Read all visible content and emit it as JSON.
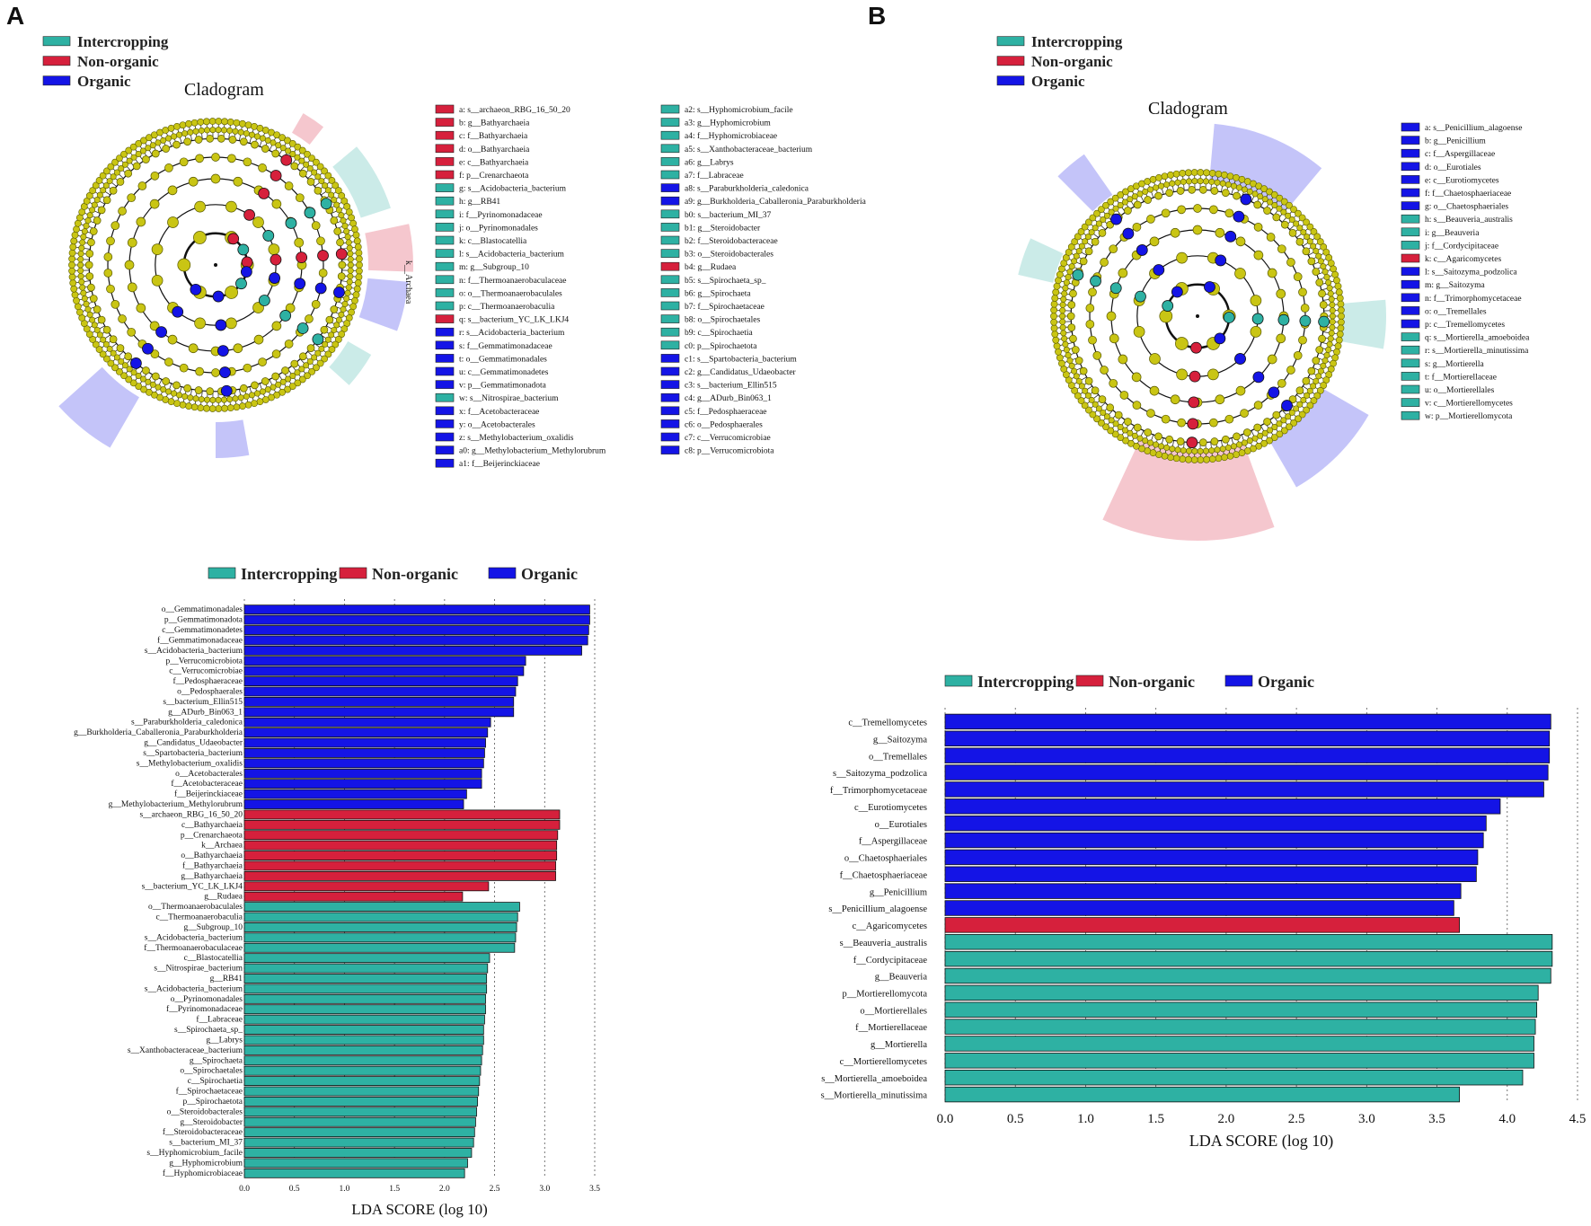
{
  "panels": [
    "A",
    "B"
  ],
  "colors": {
    "intercropping": "#2eb1a3",
    "non_organic": "#d6203c",
    "organic": "#1414e6",
    "node": "#c9c514",
    "node_stroke": "#5a5a00"
  },
  "cladogram_title": "Cladogram",
  "legend": {
    "intercropping": "Intercropping",
    "non_organic": "Non-organic",
    "organic": "Organic"
  },
  "chart_data": [
    {
      "panel": "A",
      "type": "cladogram",
      "title": "Cladogram",
      "series": [
        "Intercropping",
        "Non-organic",
        "Organic"
      ],
      "annotation": "k__Archaea",
      "key_col1": [
        {
          "g": "non_organic",
          "t": "a: s__archaeon_RBG_16_50_20"
        },
        {
          "g": "non_organic",
          "t": "b: g__Bathyarchaeia"
        },
        {
          "g": "non_organic",
          "t": "c: f__Bathyarchaeia"
        },
        {
          "g": "non_organic",
          "t": "d: o__Bathyarchaeia"
        },
        {
          "g": "non_organic",
          "t": "e: c__Bathyarchaeia"
        },
        {
          "g": "non_organic",
          "t": "f: p__Crenarchaeota"
        },
        {
          "g": "intercropping",
          "t": "g: s__Acidobacteria_bacterium"
        },
        {
          "g": "intercropping",
          "t": "h: g__RB41"
        },
        {
          "g": "intercropping",
          "t": "i: f__Pyrinomonadaceae"
        },
        {
          "g": "intercropping",
          "t": "j: o__Pyrinomonadales"
        },
        {
          "g": "intercropping",
          "t": "k: c__Blastocatellia"
        },
        {
          "g": "intercropping",
          "t": "l: s__Acidobacteria_bacterium"
        },
        {
          "g": "intercropping",
          "t": "m: g__Subgroup_10"
        },
        {
          "g": "intercropping",
          "t": "n: f__Thermoanaerobaculaceae"
        },
        {
          "g": "intercropping",
          "t": "o: o__Thermoanaerobaculales"
        },
        {
          "g": "intercropping",
          "t": "p: c__Thermoanaerobaculia"
        },
        {
          "g": "non_organic",
          "t": "q: s__bacterium_YC_LK_LKJ4"
        },
        {
          "g": "organic",
          "t": "r: s__Acidobacteria_bacterium"
        },
        {
          "g": "organic",
          "t": "s: f__Gemmatimonadaceae"
        },
        {
          "g": "organic",
          "t": "t: o__Gemmatimonadales"
        },
        {
          "g": "organic",
          "t": "u: c__Gemmatimonadetes"
        },
        {
          "g": "organic",
          "t": "v: p__Gemmatimonadota"
        },
        {
          "g": "intercropping",
          "t": "w: s__Nitrospirae_bacterium"
        },
        {
          "g": "organic",
          "t": "x: f__Acetobacteraceae"
        },
        {
          "g": "organic",
          "t": "y: o__Acetobacterales"
        },
        {
          "g": "organic",
          "t": "z: s__Methylobacterium_oxalidis"
        },
        {
          "g": "organic",
          "t": "a0: g__Methylobacterium_Methylorubrum"
        },
        {
          "g": "organic",
          "t": "a1: f__Beijerinckiaceae"
        }
      ],
      "key_col2": [
        {
          "g": "intercropping",
          "t": "a2: s__Hyphomicrobium_facile"
        },
        {
          "g": "intercropping",
          "t": "a3: g__Hyphomicrobium"
        },
        {
          "g": "intercropping",
          "t": "a4: f__Hyphomicrobiaceae"
        },
        {
          "g": "intercropping",
          "t": "a5: s__Xanthobacteraceae_bacterium"
        },
        {
          "g": "intercropping",
          "t": "a6: g__Labrys"
        },
        {
          "g": "intercropping",
          "t": "a7: f__Labraceae"
        },
        {
          "g": "organic",
          "t": "a8: s__Paraburkholderia_caledonica"
        },
        {
          "g": "organic",
          "t": "a9: g__Burkholderia_Caballeronia_Paraburkholderia"
        },
        {
          "g": "intercropping",
          "t": "b0: s__bacterium_MI_37"
        },
        {
          "g": "intercropping",
          "t": "b1: g__Steroidobacter"
        },
        {
          "g": "intercropping",
          "t": "b2: f__Steroidobacteraceae"
        },
        {
          "g": "intercropping",
          "t": "b3: o__Steroidobacterales"
        },
        {
          "g": "non_organic",
          "t": "b4: g__Rudaea"
        },
        {
          "g": "intercropping",
          "t": "b5: s__Spirochaeta_sp_"
        },
        {
          "g": "intercropping",
          "t": "b6: g__Spirochaeta"
        },
        {
          "g": "intercropping",
          "t": "b7: f__Spirochaetaceae"
        },
        {
          "g": "intercropping",
          "t": "b8: o__Spirochaetales"
        },
        {
          "g": "intercropping",
          "t": "b9: c__Spirochaetia"
        },
        {
          "g": "intercropping",
          "t": "c0: p__Spirochaetota"
        },
        {
          "g": "organic",
          "t": "c1: s__Spartobacteria_bacterium"
        },
        {
          "g": "organic",
          "t": "c2: g__Candidatus_Udaeobacter"
        },
        {
          "g": "organic",
          "t": "c3: s__bacterium_Ellin515"
        },
        {
          "g": "organic",
          "t": "c4: g__ADurb_Bin063_1"
        },
        {
          "g": "organic",
          "t": "c5: f__Pedosphaeraceae"
        },
        {
          "g": "organic",
          "t": "c6: o__Pedosphaerales"
        },
        {
          "g": "organic",
          "t": "c7: c__Verrucomicrobiae"
        },
        {
          "g": "organic",
          "t": "c8: p__Verrucomicrobiota"
        }
      ]
    },
    {
      "panel": "A",
      "type": "bar",
      "orientation": "horizontal",
      "xlabel": "LDA SCORE (log 10)",
      "xlim": [
        0,
        3.5
      ],
      "xticks": [
        "0.0",
        "0.5",
        "1.0",
        "1.5",
        "2.0",
        "2.5",
        "3.0",
        "3.5"
      ],
      "series": [
        "Intercropping",
        "Non-organic",
        "Organic"
      ],
      "bars": [
        {
          "label": "o__Gemmatimonadales",
          "value": 3.45,
          "g": "organic"
        },
        {
          "label": "p__Gemmatimonadota",
          "value": 3.45,
          "g": "organic"
        },
        {
          "label": "c__Gemmatimonadetes",
          "value": 3.44,
          "g": "organic"
        },
        {
          "label": "f__Gemmatimonadaceae",
          "value": 3.43,
          "g": "organic"
        },
        {
          "label": "s__Acidobacteria_bacterium",
          "value": 3.37,
          "g": "organic"
        },
        {
          "label": "p__Verrucomicrobiota",
          "value": 2.81,
          "g": "organic"
        },
        {
          "label": "c__Verrucomicrobiae",
          "value": 2.79,
          "g": "organic"
        },
        {
          "label": "f__Pedosphaeraceae",
          "value": 2.73,
          "g": "organic"
        },
        {
          "label": "o__Pedosphaerales",
          "value": 2.71,
          "g": "organic"
        },
        {
          "label": "s__bacterium_Ellin515",
          "value": 2.69,
          "g": "organic"
        },
        {
          "label": "g__ADurb_Bin063_1",
          "value": 2.69,
          "g": "organic"
        },
        {
          "label": "s__Paraburkholderia_caledonica",
          "value": 2.46,
          "g": "organic"
        },
        {
          "label": "g__Burkholderia_Caballeronia_Paraburkholderia",
          "value": 2.43,
          "g": "organic"
        },
        {
          "label": "g__Candidatus_Udaeobacter",
          "value": 2.41,
          "g": "organic"
        },
        {
          "label": "s__Spartobacteria_bacterium",
          "value": 2.4,
          "g": "organic"
        },
        {
          "label": "s__Methylobacterium_oxalidis",
          "value": 2.39,
          "g": "organic"
        },
        {
          "label": "o__Acetobacterales",
          "value": 2.37,
          "g": "organic"
        },
        {
          "label": "f__Acetobacteraceae",
          "value": 2.37,
          "g": "organic"
        },
        {
          "label": "f__Beijerinckiaceae",
          "value": 2.22,
          "g": "organic"
        },
        {
          "label": "g__Methylobacterium_Methylorubrum",
          "value": 2.19,
          "g": "organic"
        },
        {
          "label": "s__archaeon_RBG_16_50_20",
          "value": 3.15,
          "g": "non_organic"
        },
        {
          "label": "c__Bathyarchaeia",
          "value": 3.15,
          "g": "non_organic"
        },
        {
          "label": "p__Crenarchaeota",
          "value": 3.13,
          "g": "non_organic"
        },
        {
          "label": "k__Archaea",
          "value": 3.12,
          "g": "non_organic"
        },
        {
          "label": "o__Bathyarchaeia",
          "value": 3.12,
          "g": "non_organic"
        },
        {
          "label": "f__Bathyarchaeia",
          "value": 3.11,
          "g": "non_organic"
        },
        {
          "label": "g__Bathyarchaeia",
          "value": 3.11,
          "g": "non_organic"
        },
        {
          "label": "s__bacterium_YC_LK_LKJ4",
          "value": 2.44,
          "g": "non_organic"
        },
        {
          "label": "g__Rudaea",
          "value": 2.18,
          "g": "non_organic"
        },
        {
          "label": "o__Thermoanaerobaculales",
          "value": 2.75,
          "g": "intercropping"
        },
        {
          "label": "c__Thermoanaerobaculia",
          "value": 2.73,
          "g": "intercropping"
        },
        {
          "label": "g__Subgroup_10",
          "value": 2.72,
          "g": "intercropping"
        },
        {
          "label": "s__Acidobacteria_bacterium",
          "value": 2.71,
          "g": "intercropping"
        },
        {
          "label": "f__Thermoanaerobaculaceae",
          "value": 2.7,
          "g": "intercropping"
        },
        {
          "label": "c__Blastocatellia",
          "value": 2.45,
          "g": "intercropping"
        },
        {
          "label": "s__Nitrospirae_bacterium",
          "value": 2.43,
          "g": "intercropping"
        },
        {
          "label": "g__RB41",
          "value": 2.42,
          "g": "intercropping"
        },
        {
          "label": "s__Acidobacteria_bacterium",
          "value": 2.42,
          "g": "intercropping"
        },
        {
          "label": "o__Pyrinomonadales",
          "value": 2.41,
          "g": "intercropping"
        },
        {
          "label": "f__Pyrinomonadaceae",
          "value": 2.41,
          "g": "intercropping"
        },
        {
          "label": "f__Labraceae",
          "value": 2.4,
          "g": "intercropping"
        },
        {
          "label": "s__Spirochaeta_sp_",
          "value": 2.39,
          "g": "intercropping"
        },
        {
          "label": "g__Labrys",
          "value": 2.39,
          "g": "intercropping"
        },
        {
          "label": "s__Xanthobacteraceae_bacterium",
          "value": 2.38,
          "g": "intercropping"
        },
        {
          "label": "g__Spirochaeta",
          "value": 2.37,
          "g": "intercropping"
        },
        {
          "label": "o__Spirochaetales",
          "value": 2.36,
          "g": "intercropping"
        },
        {
          "label": "c__Spirochaetia",
          "value": 2.35,
          "g": "intercropping"
        },
        {
          "label": "f__Spirochaetaceae",
          "value": 2.34,
          "g": "intercropping"
        },
        {
          "label": "p__Spirochaetota",
          "value": 2.33,
          "g": "intercropping"
        },
        {
          "label": "o__Steroidobacterales",
          "value": 2.32,
          "g": "intercropping"
        },
        {
          "label": "g__Steroidobacter",
          "value": 2.31,
          "g": "intercropping"
        },
        {
          "label": "f__Steroidobacteraceae",
          "value": 2.3,
          "g": "intercropping"
        },
        {
          "label": "s__bacterium_MI_37",
          "value": 2.29,
          "g": "intercropping"
        },
        {
          "label": "s__Hyphomicrobium_facile",
          "value": 2.27,
          "g": "intercropping"
        },
        {
          "label": "g__Hyphomicrobium",
          "value": 2.23,
          "g": "intercropping"
        },
        {
          "label": "f__Hyphomicrobiaceae",
          "value": 2.2,
          "g": "intercropping"
        }
      ]
    },
    {
      "panel": "B",
      "type": "cladogram",
      "title": "Cladogram",
      "series": [
        "Intercropping",
        "Non-organic",
        "Organic"
      ],
      "key_col1": [
        {
          "g": "organic",
          "t": "a: s__Penicillium_alagoense"
        },
        {
          "g": "organic",
          "t": "b: g__Penicillium"
        },
        {
          "g": "organic",
          "t": "c: f__Aspergillaceae"
        },
        {
          "g": "organic",
          "t": "d: o__Eurotiales"
        },
        {
          "g": "organic",
          "t": "e: c__Eurotiomycetes"
        },
        {
          "g": "organic",
          "t": "f: f__Chaetosphaeriaceae"
        },
        {
          "g": "organic",
          "t": "g: o__Chaetosphaeriales"
        },
        {
          "g": "intercropping",
          "t": "h: s__Beauveria_australis"
        },
        {
          "g": "intercropping",
          "t": "i: g__Beauveria"
        },
        {
          "g": "intercropping",
          "t": "j: f__Cordycipitaceae"
        },
        {
          "g": "non_organic",
          "t": "k: c__Agaricomycetes"
        },
        {
          "g": "organic",
          "t": "l: s__Saitozyma_podzolica"
        },
        {
          "g": "organic",
          "t": "m: g__Saitozyma"
        },
        {
          "g": "organic",
          "t": "n: f__Trimorphomycetaceae"
        },
        {
          "g": "organic",
          "t": "o: o__Tremellales"
        },
        {
          "g": "organic",
          "t": "p: c__Tremellomycetes"
        },
        {
          "g": "intercropping",
          "t": "q: s__Mortierella_amoeboidea"
        },
        {
          "g": "intercropping",
          "t": "r: s__Mortierella_minutissima"
        },
        {
          "g": "intercropping",
          "t": "s: g__Mortierella"
        },
        {
          "g": "intercropping",
          "t": "t: f__Mortierellaceae"
        },
        {
          "g": "intercropping",
          "t": "u: o__Mortierellales"
        },
        {
          "g": "intercropping",
          "t": "v: c__Mortierellomycetes"
        },
        {
          "g": "intercropping",
          "t": "w: p__Mortierellomycota"
        }
      ]
    },
    {
      "panel": "B",
      "type": "bar",
      "orientation": "horizontal",
      "xlabel": "LDA SCORE (log 10)",
      "xlim": [
        0,
        4.5
      ],
      "xticks": [
        "0.0",
        "0.5",
        "1.0",
        "1.5",
        "2.0",
        "2.5",
        "3.0",
        "3.5",
        "4.0",
        "4.5"
      ],
      "series": [
        "Intercropping",
        "Non-organic",
        "Organic"
      ],
      "bars": [
        {
          "label": "c__Tremellomycetes",
          "value": 4.31,
          "g": "organic"
        },
        {
          "label": "g__Saitozyma",
          "value": 4.3,
          "g": "organic"
        },
        {
          "label": "o__Tremellales",
          "value": 4.3,
          "g": "organic"
        },
        {
          "label": "s__Saitozyma_podzolica",
          "value": 4.29,
          "g": "organic"
        },
        {
          "label": "f__Trimorphomycetaceae",
          "value": 4.26,
          "g": "organic"
        },
        {
          "label": "c__Eurotiomycetes",
          "value": 3.95,
          "g": "organic"
        },
        {
          "label": "o__Eurotiales",
          "value": 3.85,
          "g": "organic"
        },
        {
          "label": "f__Aspergillaceae",
          "value": 3.83,
          "g": "organic"
        },
        {
          "label": "o__Chaetosphaeriales",
          "value": 3.79,
          "g": "organic"
        },
        {
          "label": "f__Chaetosphaeriaceae",
          "value": 3.78,
          "g": "organic"
        },
        {
          "label": "g__Penicillium",
          "value": 3.67,
          "g": "organic"
        },
        {
          "label": "s__Penicillium_alagoense",
          "value": 3.62,
          "g": "organic"
        },
        {
          "label": "c__Agaricomycetes",
          "value": 3.66,
          "g": "non_organic"
        },
        {
          "label": "s__Beauveria_australis",
          "value": 4.32,
          "g": "intercropping"
        },
        {
          "label": "f__Cordycipitaceae",
          "value": 4.32,
          "g": "intercropping"
        },
        {
          "label": "g__Beauveria",
          "value": 4.31,
          "g": "intercropping"
        },
        {
          "label": "p__Mortierellomycota",
          "value": 4.22,
          "g": "intercropping"
        },
        {
          "label": "o__Mortierellales",
          "value": 4.21,
          "g": "intercropping"
        },
        {
          "label": "f__Mortierellaceae",
          "value": 4.2,
          "g": "intercropping"
        },
        {
          "label": "g__Mortierella",
          "value": 4.19,
          "g": "intercropping"
        },
        {
          "label": "c__Mortierellomycetes",
          "value": 4.19,
          "g": "intercropping"
        },
        {
          "label": "s__Mortierella_amoeboidea",
          "value": 4.11,
          "g": "intercropping"
        },
        {
          "label": "s__Mortierella_minutissima",
          "value": 3.66,
          "g": "intercropping"
        }
      ]
    }
  ]
}
